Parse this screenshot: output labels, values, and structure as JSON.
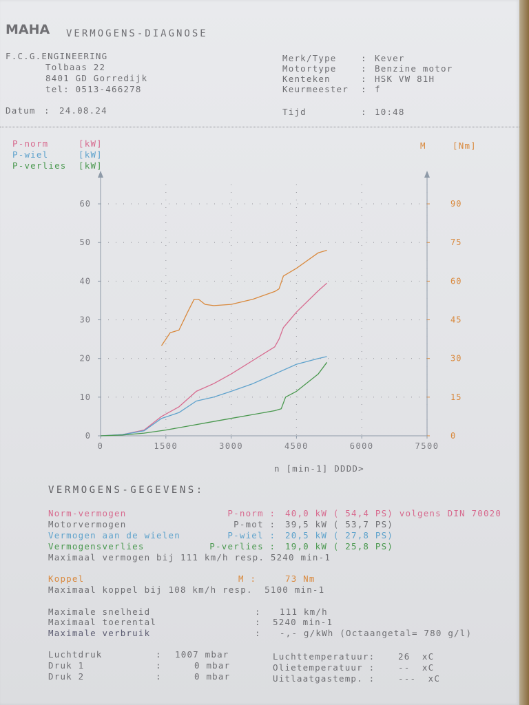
{
  "header": {
    "brand": "MAHA",
    "title": "VERMOGENS-DIAGNOSE",
    "company": [
      "F.C.G.ENGINEERING",
      "Tolbaas 22",
      "8401 GD Gorredijk",
      "tel: 0513-466278"
    ],
    "vehicle": [
      {
        "label": "Merk/Type",
        "value": "Kever"
      },
      {
        "label": "Motortype",
        "value": "Benzine motor"
      },
      {
        "label": "Kenteken",
        "value": "HSK VW 81H"
      },
      {
        "label": "Keurmeester",
        "value": "f"
      }
    ],
    "date_label": "Datum",
    "date": "24.08.24",
    "time_label": "Tijd",
    "time": "10:48"
  },
  "legend": [
    {
      "name": "P-norm",
      "unit": "[kW]",
      "color": "#d76a8e"
    },
    {
      "name": "P-wiel",
      "unit": "[kW]",
      "color": "#5ea2cc"
    },
    {
      "name": "P-verlies",
      "unit": "[kW]",
      "color": "#49984e"
    }
  ],
  "torque_legend": {
    "name": "M",
    "unit": "[Nm]",
    "color": "#d9893d"
  },
  "chart_data": {
    "type": "line",
    "xlabel": "n [min-1] DDDD>",
    "xlim": [
      0,
      7500
    ],
    "x_ticks": [
      0,
      1500,
      3000,
      4500,
      6000,
      7500
    ],
    "ylim_left": [
      0,
      65
    ],
    "y_ticks_left": [
      0,
      10,
      20,
      30,
      40,
      50,
      60
    ],
    "ylim_right": [
      0,
      97.5
    ],
    "y_ticks_right": [
      0,
      15,
      30,
      45,
      60,
      75,
      90
    ],
    "grid": "dotted",
    "series": [
      {
        "name": "P-norm",
        "axis": "left",
        "color": "#d76a8e",
        "x": [
          0,
          500,
          1000,
          1400,
          1800,
          2200,
          2600,
          3000,
          3500,
          4000,
          4100,
          4200,
          4500,
          5000,
          5200
        ],
        "y": [
          0,
          0.3,
          1.5,
          5,
          7.5,
          11.5,
          13.5,
          16,
          19.5,
          23,
          25,
          28,
          32,
          37.5,
          39.5
        ]
      },
      {
        "name": "P-wiel",
        "axis": "left",
        "color": "#5ea2cc",
        "x": [
          0,
          500,
          1000,
          1400,
          1800,
          2200,
          2600,
          3000,
          3500,
          4000,
          4500,
          5000,
          5200
        ],
        "y": [
          0,
          0.3,
          1.3,
          4.5,
          6,
          9,
          10,
          11.5,
          13.5,
          16,
          18.5,
          20,
          20.5
        ]
      },
      {
        "name": "P-verlies",
        "axis": "left",
        "color": "#49984e",
        "x": [
          0,
          500,
          1000,
          1500,
          2000,
          2500,
          3000,
          3500,
          4000,
          4150,
          4250,
          4500,
          5000,
          5200
        ],
        "y": [
          0,
          0.2,
          0.7,
          1.5,
          2.5,
          3.5,
          4.5,
          5.5,
          6.5,
          7,
          10,
          11.5,
          16,
          19
        ]
      },
      {
        "name": "M",
        "axis": "right",
        "color": "#d9893d",
        "x": [
          1400,
          1600,
          1800,
          2000,
          2150,
          2250,
          2400,
          2600,
          3000,
          3500,
          4000,
          4100,
          4200,
          4500,
          5000,
          5200
        ],
        "y": [
          35,
          40,
          41,
          48,
          53,
          53,
          51,
          50.5,
          51,
          53,
          56,
          57,
          62,
          65,
          71,
          72
        ]
      }
    ]
  },
  "results": {
    "section_title": "VERMOGENS-GEGEVENS:",
    "rows": [
      {
        "label": "Norm-vermogen",
        "key": "P-norm :",
        "value": "40,0 kW ( 54,4 PS) volgens DIN 70020",
        "color": "#d76a8e"
      },
      {
        "label": "Motorvermogen",
        "key": "P-mot :",
        "value": "39,5 kW ( 53,7 PS)",
        "color": "#707074"
      },
      {
        "label": "Vermogen aan de wielen",
        "key": "P-wiel :",
        "value": "20,5 kW ( 27,8 PS)",
        "color": "#5ea2cc"
      },
      {
        "label": "Vermogensverlies",
        "key": "P-verlies :",
        "value": "19,0 kW ( 25,8 PS)",
        "color": "#49984e"
      }
    ],
    "max_power": "Maximaal vermogen bij 111 km/h resp. 5240 min-1",
    "koppel_label": "Koppel",
    "koppel_key": "M :",
    "koppel_value": "73 Nm",
    "max_torque": "Maximaal koppel bij 108 km/h resp.  5100 min-1",
    "extra": [
      {
        "label": "Maximale snelheid",
        "value": "111 km/h"
      },
      {
        "label": "Maximaal toerental",
        "value": "5240 min-1"
      },
      {
        "label": "Maximale verbruik",
        "value": "-,- g/kWh (Octaangetal= 780 g/l)"
      }
    ],
    "conditions_left": [
      {
        "label": "Luchtdruk",
        "value": "1007 mbar"
      },
      {
        "label": "Druk 1",
        "value": "0 mbar"
      },
      {
        "label": "Druk 2",
        "value": "0 mbar"
      }
    ],
    "conditions_right": [
      {
        "label": "Luchttemperatuur:",
        "value": "26  xC"
      },
      {
        "label": "Olietemperatuur :",
        "value": "--  xC"
      },
      {
        "label": "Uitlaatgastemp. :",
        "value": "---  xC"
      }
    ]
  }
}
